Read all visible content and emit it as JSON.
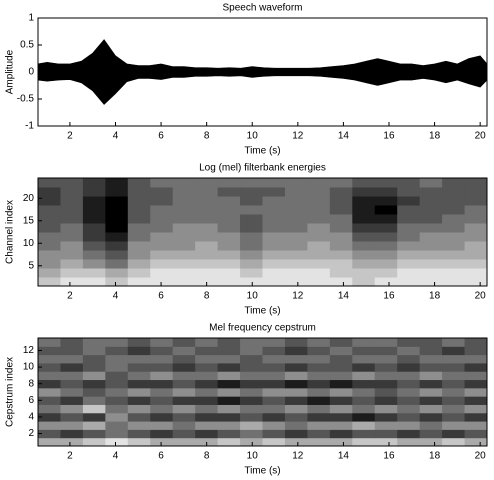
{
  "chart_data": [
    {
      "type": "envelope",
      "title": "Speech waveform",
      "x_label": "Time (s)",
      "y_label": "Amplitude",
      "color": "#000000",
      "x": [
        0.6,
        1,
        1.5,
        2,
        2.5,
        3,
        3.5,
        4,
        4.5,
        5,
        5.5,
        6,
        6.5,
        7,
        7.5,
        8,
        8.5,
        9,
        9.5,
        10,
        10.5,
        11,
        11.5,
        12,
        12.5,
        13,
        13.5,
        14,
        14.5,
        15,
        15.5,
        16,
        16.5,
        17,
        17.5,
        18,
        18.5,
        19,
        19.5,
        20,
        20.3
      ],
      "values_high": [
        0.15,
        0.18,
        0.15,
        0.15,
        0.2,
        0.35,
        0.6,
        0.3,
        0.15,
        0.12,
        0.12,
        0.15,
        0.1,
        0.1,
        0.08,
        0.08,
        0.07,
        0.08,
        0.07,
        0.1,
        0.08,
        0.07,
        0.07,
        0.07,
        0.07,
        0.08,
        0.1,
        0.12,
        0.15,
        0.2,
        0.25,
        0.2,
        0.15,
        0.15,
        0.12,
        0.15,
        0.2,
        0.15,
        0.25,
        0.3,
        0.15
      ],
      "values_low": [
        -0.15,
        -0.17,
        -0.15,
        -0.14,
        -0.2,
        -0.35,
        -0.6,
        -0.4,
        -0.18,
        -0.12,
        -0.12,
        -0.14,
        -0.1,
        -0.1,
        -0.08,
        -0.08,
        -0.07,
        -0.08,
        -0.07,
        -0.1,
        -0.08,
        -0.07,
        -0.07,
        -0.07,
        -0.07,
        -0.08,
        -0.1,
        -0.12,
        -0.15,
        -0.2,
        -0.25,
        -0.2,
        -0.15,
        -0.15,
        -0.12,
        -0.15,
        -0.2,
        -0.15,
        -0.22,
        -0.28,
        -0.15
      ],
      "xlim": [
        0.6,
        20.3
      ],
      "ylim": [
        -1,
        1
      ],
      "xticks": [
        2,
        4,
        6,
        8,
        10,
        12,
        14,
        16,
        18,
        20
      ],
      "yticks": [
        -1,
        -0.5,
        0,
        0.5,
        1
      ]
    },
    {
      "type": "heatmap",
      "title": "Log (mel) filterbank energies",
      "x_label": "Time (s)",
      "y_label": "Channel index",
      "xlim": [
        0.6,
        20.3
      ],
      "ylim": [
        0.5,
        24.5
      ],
      "zlim": [
        0,
        9
      ],
      "colormap": [
        "#ffffff",
        "#000000"
      ],
      "xticks": [
        2,
        4,
        6,
        8,
        10,
        12,
        14,
        16,
        18,
        20
      ],
      "yticks": [
        5,
        10,
        15,
        20
      ],
      "z": [
        [
          2,
          1,
          1,
          2,
          1,
          1,
          1,
          1,
          1,
          1,
          1,
          1,
          1,
          1,
          2,
          1,
          1,
          1,
          1,
          1
        ],
        [
          3,
          2,
          2,
          3,
          2,
          1,
          1,
          1,
          1,
          2,
          1,
          1,
          1,
          2,
          2,
          2,
          1,
          1,
          1,
          1
        ],
        [
          4,
          3,
          4,
          5,
          3,
          2,
          2,
          2,
          2,
          3,
          2,
          2,
          2,
          2,
          3,
          3,
          2,
          2,
          2,
          2
        ],
        [
          4,
          4,
          5,
          6,
          4,
          3,
          3,
          3,
          3,
          4,
          3,
          3,
          3,
          3,
          4,
          4,
          3,
          3,
          3,
          3
        ],
        [
          5,
          4,
          6,
          7,
          4,
          4,
          4,
          3,
          4,
          5,
          4,
          4,
          3,
          4,
          5,
          5,
          4,
          4,
          4,
          3
        ],
        [
          5,
          5,
          7,
          8,
          5,
          4,
          4,
          4,
          4,
          5,
          4,
          4,
          4,
          4,
          6,
          6,
          5,
          4,
          4,
          4
        ],
        [
          6,
          5,
          7,
          9,
          5,
          5,
          4,
          4,
          5,
          6,
          5,
          5,
          4,
          5,
          7,
          7,
          5,
          5,
          5,
          4
        ],
        [
          6,
          6,
          8,
          9,
          6,
          5,
          5,
          5,
          5,
          6,
          5,
          5,
          5,
          5,
          8,
          8,
          6,
          6,
          5,
          5
        ],
        [
          6,
          6,
          8,
          9,
          6,
          5,
          5,
          5,
          5,
          5,
          5,
          5,
          5,
          6,
          8,
          9,
          6,
          6,
          6,
          5
        ],
        [
          7,
          6,
          8,
          9,
          6,
          6,
          5,
          5,
          5,
          6,
          5,
          5,
          5,
          6,
          8,
          8,
          7,
          6,
          6,
          6
        ],
        [
          7,
          6,
          7,
          8,
          6,
          6,
          5,
          5,
          6,
          6,
          6,
          5,
          5,
          6,
          7,
          7,
          6,
          6,
          6,
          6
        ],
        [
          6,
          6,
          7,
          8,
          6,
          5,
          5,
          5,
          5,
          5,
          5,
          5,
          5,
          5,
          6,
          6,
          6,
          5,
          6,
          6
        ]
      ]
    },
    {
      "type": "heatmap",
      "title": "Mel frequency cepstrum",
      "x_label": "Time (s)",
      "y_label": "Cepstrum index",
      "xlim": [
        0.6,
        20.3
      ],
      "ylim": [
        0.5,
        13.5
      ],
      "zlim": [
        0,
        9
      ],
      "colormap": [
        "#ffffff",
        "#000000"
      ],
      "xticks": [
        2,
        4,
        6,
        8,
        10,
        12,
        14,
        16,
        18,
        20
      ],
      "yticks": [
        2,
        4,
        6,
        8,
        10,
        12
      ],
      "z": [
        [
          3,
          3,
          2,
          1,
          2,
          3,
          3,
          3,
          2,
          3,
          2,
          3,
          3,
          3,
          2,
          2,
          3,
          3,
          2,
          3
        ],
        [
          6,
          7,
          6,
          5,
          6,
          7,
          6,
          7,
          6,
          5,
          6,
          7,
          6,
          7,
          6,
          6,
          7,
          6,
          7,
          6
        ],
        [
          4,
          4,
          3,
          5,
          4,
          4,
          5,
          4,
          4,
          3,
          4,
          5,
          4,
          4,
          3,
          4,
          4,
          5,
          4,
          4
        ],
        [
          7,
          6,
          7,
          4,
          6,
          7,
          6,
          7,
          7,
          6,
          7,
          6,
          7,
          7,
          8,
          7,
          6,
          7,
          6,
          7
        ],
        [
          5,
          4,
          2,
          5,
          4,
          5,
          4,
          5,
          4,
          5,
          5,
          4,
          5,
          4,
          5,
          4,
          5,
          4,
          5,
          4
        ],
        [
          6,
          7,
          5,
          6,
          7,
          6,
          7,
          7,
          8,
          7,
          6,
          7,
          8,
          7,
          6,
          7,
          6,
          7,
          6,
          7
        ],
        [
          4,
          5,
          6,
          5,
          4,
          5,
          4,
          5,
          4,
          5,
          4,
          4,
          5,
          4,
          5,
          6,
          5,
          4,
          5,
          4
        ],
        [
          7,
          6,
          7,
          6,
          7,
          7,
          6,
          7,
          8,
          7,
          7,
          8,
          7,
          8,
          7,
          7,
          6,
          7,
          6,
          7
        ],
        [
          5,
          5,
          4,
          6,
          5,
          4,
          5,
          5,
          4,
          5,
          5,
          4,
          5,
          5,
          4,
          5,
          5,
          4,
          5,
          5
        ],
        [
          6,
          7,
          6,
          5,
          6,
          6,
          7,
          6,
          7,
          6,
          6,
          7,
          6,
          6,
          7,
          6,
          7,
          6,
          6,
          7
        ],
        [
          5,
          5,
          6,
          5,
          5,
          5,
          6,
          5,
          5,
          6,
          5,
          5,
          5,
          6,
          5,
          5,
          6,
          5,
          5,
          5
        ],
        [
          6,
          6,
          5,
          6,
          7,
          6,
          5,
          6,
          6,
          5,
          6,
          7,
          6,
          5,
          6,
          6,
          5,
          6,
          7,
          6
        ],
        [
          5,
          6,
          5,
          5,
          6,
          5,
          6,
          5,
          6,
          5,
          5,
          6,
          5,
          6,
          5,
          5,
          6,
          6,
          5,
          6
        ]
      ]
    }
  ]
}
